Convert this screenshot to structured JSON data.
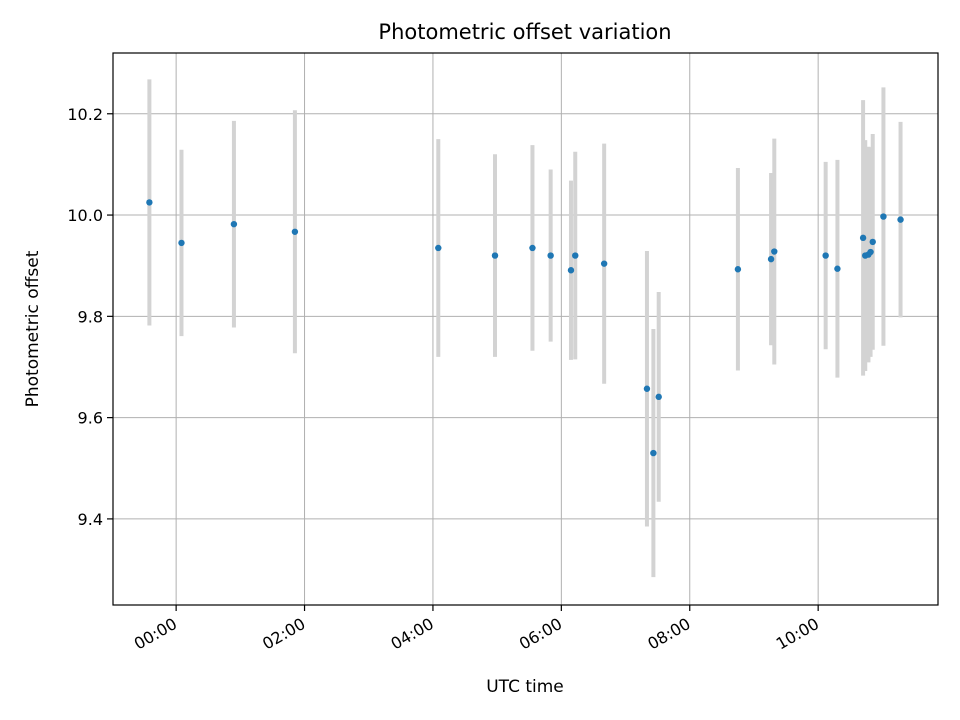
{
  "chart_data": {
    "type": "scatter",
    "title": "Photometric offset variation",
    "xlabel": "UTC time",
    "ylabel": "Photometric offset",
    "x_tick_labels": [
      "00:00",
      "02:00",
      "04:00",
      "06:00",
      "08:00",
      "10:00"
    ],
    "y_tick_labels": [
      "9.4",
      "9.6",
      "9.8",
      "10.0",
      "10.2"
    ],
    "y_ticks": [
      9.4,
      9.6,
      9.8,
      10.0,
      10.2
    ],
    "xlim": [
      "-00:59",
      "11:52"
    ],
    "ylim": [
      9.23,
      10.32
    ],
    "grid": true,
    "colors": {
      "point": "#1f77b4",
      "errorbar": "#d3d3d3",
      "grid": "#b0b0b0"
    },
    "series": [
      {
        "points": [
          {
            "time": "-00:25",
            "y": 10.025,
            "err": 0.243
          },
          {
            "time": "00:05",
            "y": 9.945,
            "err": 0.184
          },
          {
            "time": "00:54",
            "y": 9.982,
            "err": 0.204
          },
          {
            "time": "01:51",
            "y": 9.967,
            "err": 0.24
          },
          {
            "time": "04:05",
            "y": 9.935,
            "err": 0.215
          },
          {
            "time": "04:58",
            "y": 9.92,
            "err": 0.2
          },
          {
            "time": "05:33",
            "y": 9.935,
            "err": 0.203
          },
          {
            "time": "05:50",
            "y": 9.92,
            "err": 0.17
          },
          {
            "time": "06:09",
            "y": 9.891,
            "err": 0.177
          },
          {
            "time": "06:13",
            "y": 9.92,
            "err": 0.205
          },
          {
            "time": "06:40",
            "y": 9.904,
            "err": 0.237
          },
          {
            "time": "07:20",
            "y": 9.657,
            "err": 0.272
          },
          {
            "time": "07:26",
            "y": 9.53,
            "err": 0.245
          },
          {
            "time": "07:31",
            "y": 9.641,
            "err": 0.207
          },
          {
            "time": "08:45",
            "y": 9.893,
            "err": 0.2
          },
          {
            "time": "09:16",
            "y": 9.913,
            "err": 0.17
          },
          {
            "time": "09:19",
            "y": 9.928,
            "err": 0.223
          },
          {
            "time": "10:07",
            "y": 9.92,
            "err": 0.185
          },
          {
            "time": "10:18",
            "y": 9.894,
            "err": 0.215
          },
          {
            "time": "10:42",
            "y": 9.955,
            "err": 0.272
          },
          {
            "time": "10:44",
            "y": 9.92,
            "err": 0.228
          },
          {
            "time": "10:47",
            "y": 9.922,
            "err": 0.213
          },
          {
            "time": "10:49",
            "y": 9.927,
            "err": 0.207
          },
          {
            "time": "10:51",
            "y": 9.947,
            "err": 0.213
          },
          {
            "time": "11:01",
            "y": 9.997,
            "err": 0.255
          },
          {
            "time": "11:17",
            "y": 9.991,
            "err": 0.193
          }
        ]
      }
    ]
  }
}
